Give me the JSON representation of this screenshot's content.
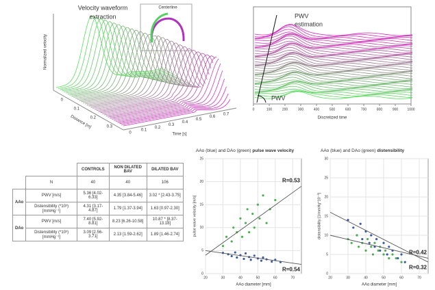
{
  "waveform_panel": {
    "title_lines": [
      "Velocity waveform",
      "extraction"
    ],
    "inset_label": "Centerline",
    "y_label": "Normalized velocity",
    "distance_label": "Distance [m]",
    "distance_ticks": [
      0,
      0.1,
      0.2,
      0.3
    ],
    "time_label": "Time [s]",
    "time_ticks": [
      0,
      0.1,
      0.2,
      0.3,
      0.4,
      0.5,
      0.6,
      0.7
    ]
  },
  "pwv_panel": {
    "title_lines": [
      "PWV",
      "estimation"
    ],
    "marker_label": "PWV",
    "x_label": "Discretized time",
    "xlim": [
      0,
      1000
    ],
    "xticks": [
      0,
      100,
      200,
      300,
      400,
      500,
      600,
      700,
      800,
      900,
      1000
    ]
  },
  "table": {
    "header": [
      "CONTROLS",
      "NON DILATED BAV",
      "DILATED BAV"
    ],
    "n_row": {
      "label": "N",
      "cells": [
        "40",
        "40",
        "106"
      ]
    },
    "groups": [
      {
        "name": "AAo",
        "rows": [
          {
            "label": "PWV [m/s]",
            "cells": [
              "5.36 [4.02-6.33]",
              "4.35 [3.84-5.46]",
              "3.02 * [2.43-3.75]"
            ]
          },
          {
            "label": "Distensibility (*10³) [mmHg⁻¹]",
            "cells": [
              "4.31 [3.17-4.87]",
              "1.79 [1.37-3.94]",
              "1.63 [0.97-2.30]"
            ]
          }
        ]
      },
      {
        "name": "DAo",
        "rows": [
          {
            "label": "PWV [m/s]",
            "cells": [
              "7.40 [5.92-8.81]",
              "8.23 [6.26-10.58]",
              "10.87 * [8.37-13.18]"
            ]
          },
          {
            "label": "Distensibility (*10³) [mmHg⁻¹]",
            "cells": [
              "3.09 [2.56-3.71]",
              "2.13 [1.59-2.62]",
              "1.89 [1.46-2.74]"
            ]
          }
        ]
      }
    ]
  },
  "chart_data": [
    {
      "type": "scatter",
      "title": "AAo (blue) and DAo (green) ",
      "title_bold": "pulse wave velocity",
      "x_label": "AAo diameter [mm]",
      "y_label": "pulse wave velocity [m/s]",
      "xlim": [
        20,
        75
      ],
      "xticks": [
        20,
        30,
        40,
        50,
        60,
        70
      ],
      "ylim": [
        0,
        25
      ],
      "yticks": [
        0,
        5,
        10,
        15,
        20,
        25
      ],
      "grid": true,
      "series": [
        {
          "color": "#3b5ba5",
          "x": [
            30,
            33,
            35,
            37,
            38,
            40,
            42,
            43,
            45,
            46,
            48,
            50,
            52,
            53,
            55,
            58,
            60,
            63
          ],
          "values": [
            4.5,
            4.2,
            3.8,
            4.6,
            3.5,
            4.0,
            3.2,
            4.4,
            3.6,
            3.0,
            3.9,
            3.3,
            2.8,
            3.5,
            3.1,
            2.6,
            3.0,
            2.5
          ]
        },
        {
          "color": "#4caf50",
          "x": [
            30,
            32,
            35,
            36,
            38,
            40,
            41,
            43,
            44,
            45,
            47,
            48,
            50,
            51,
            53,
            55,
            57,
            60
          ],
          "values": [
            6,
            8,
            7,
            10,
            9,
            12,
            8,
            11,
            14,
            9,
            13,
            10,
            15,
            12,
            17,
            11,
            14,
            16
          ]
        }
      ],
      "trend_lines": [
        {
          "label": "R=0.53",
          "color": "#555555",
          "x": [
            20,
            75
          ],
          "values": [
            4,
            19
          ]
        },
        {
          "label": "R=0.54",
          "color": "#555555",
          "x": [
            20,
            75
          ],
          "values": [
            5,
            2
          ]
        }
      ]
    },
    {
      "type": "scatter",
      "title": "AAo (blue) and DAo (green) ",
      "title_bold": "distensibility",
      "x_label": "AAo diameter [mm]",
      "y_label": "distensibility [1/mmHg*10⁻³]",
      "xlim": [
        20,
        75
      ],
      "xticks": [
        20,
        30,
        40,
        50,
        60,
        70
      ],
      "ylim": [
        0,
        30
      ],
      "yticks": [
        0,
        5,
        10,
        15,
        20,
        25,
        30
      ],
      "grid": true,
      "series": [
        {
          "color": "#3b5ba5",
          "x": [
            30,
            33,
            35,
            37,
            38,
            40,
            42,
            43,
            45,
            46,
            48,
            50,
            52,
            53,
            55,
            58,
            60,
            62
          ],
          "values": [
            14,
            12,
            10,
            13,
            9,
            11,
            8,
            10,
            7,
            9,
            6,
            8,
            5,
            7,
            6,
            4,
            5,
            3
          ]
        },
        {
          "color": "#4caf50",
          "x": [
            30,
            32,
            35,
            36,
            38,
            40,
            41,
            43,
            44,
            45,
            47,
            48,
            50,
            51,
            53,
            55,
            57,
            60
          ],
          "values": [
            9,
            8,
            10,
            7,
            8,
            6,
            9,
            7,
            5,
            8,
            6,
            7,
            5,
            6,
            4,
            5,
            4,
            3
          ]
        }
      ],
      "trend_lines": [
        {
          "label": "R=0.42",
          "color": "#555555",
          "x": [
            20,
            75
          ],
          "values": [
            10,
            4
          ]
        },
        {
          "label": "R=0.32",
          "color": "#555555",
          "x": [
            20,
            75
          ],
          "values": [
            16,
            3
          ]
        }
      ]
    }
  ]
}
